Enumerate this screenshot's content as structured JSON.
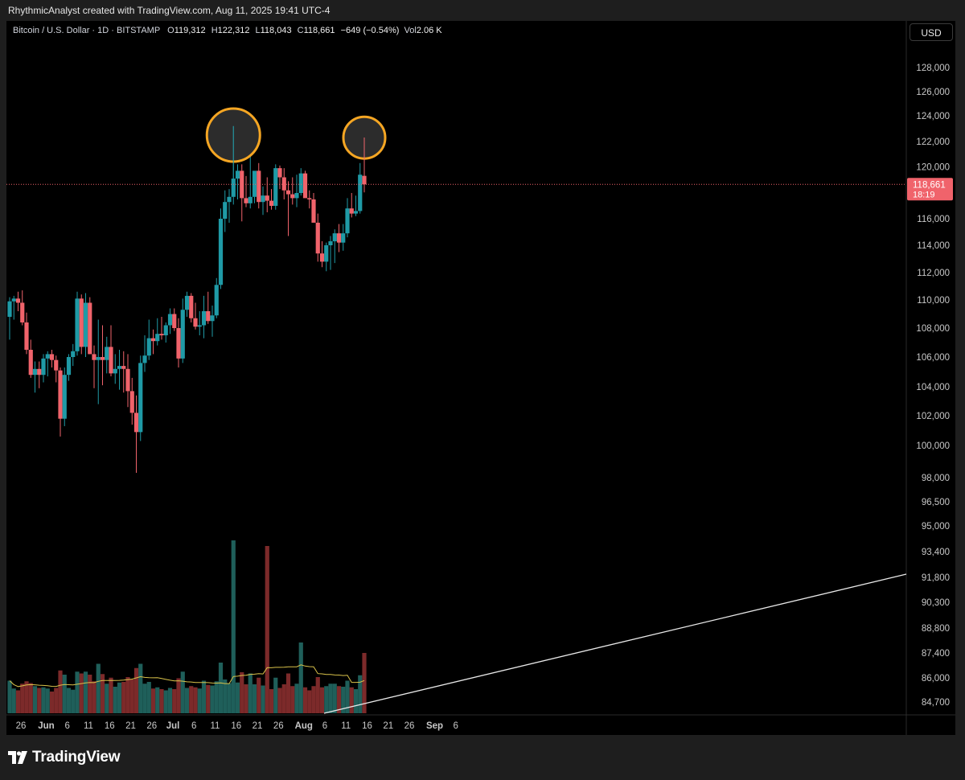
{
  "header": {
    "attribution": "RhythmicAnalyst created with TradingView.com, Aug 11, 2025 19:41 UTC-4"
  },
  "legend": {
    "symbol": "Bitcoin / U.S. Dollar · 1D · BITSTAMP",
    "o_label": "O",
    "o_value": "119,312",
    "h_label": "H",
    "h_value": "122,312",
    "l_label": "L",
    "l_value": "118,043",
    "c_label": "C",
    "c_value": "118,661",
    "change": "−649 (−0.54%)",
    "vol_label": "Vol",
    "vol_value": "2.06 K"
  },
  "currency_button": "USD",
  "last_price": {
    "value": "118,661",
    "countdown": "18:19"
  },
  "footer": {
    "brand": "TradingView"
  },
  "colors": {
    "up": "#1f9aa6",
    "down": "#f0636b",
    "vol_up": "#1f5f5a",
    "vol_down": "#7c2a2a",
    "vol_ma": "#d9c24a",
    "highlight_ring": "#f5a623",
    "trendline": "#e8e8e8",
    "price_line": "#f0636b"
  },
  "chart_data": {
    "type": "candlestick",
    "title": "",
    "y_ticks": [
      "128,000",
      "126,000",
      "124,000",
      "122,000",
      "120,000",
      "118,000",
      "116,000",
      "114,000",
      "112,000",
      "110,000",
      "108,000",
      "106,000",
      "104,000",
      "102,000",
      "100,000",
      "98,000",
      "96,500",
      "95,000",
      "93,400",
      "91,800",
      "90,300",
      "88,800",
      "87,400",
      "86,000",
      "84,700"
    ],
    "y_tick_values": [
      128000,
      126000,
      124000,
      122000,
      120000,
      118000,
      116000,
      114000,
      112000,
      110000,
      108000,
      106000,
      104000,
      102000,
      100000,
      98000,
      96500,
      95000,
      93400,
      91800,
      90300,
      88800,
      87400,
      86000,
      84700
    ],
    "x_ticks": [
      {
        "label": "26",
        "index": 0
      },
      {
        "label": "Jun",
        "index": 6
      },
      {
        "label": "6",
        "index": 11
      },
      {
        "label": "11",
        "index": 16
      },
      {
        "label": "16",
        "index": 21
      },
      {
        "label": "21",
        "index": 26
      },
      {
        "label": "26",
        "index": 31
      },
      {
        "label": "Jul",
        "index": 36
      },
      {
        "label": "6",
        "index": 41
      },
      {
        "label": "11",
        "index": 46
      },
      {
        "label": "16",
        "index": 51
      },
      {
        "label": "21",
        "index": 56
      },
      {
        "label": "26",
        "index": 61
      },
      {
        "label": "Aug",
        "index": 67
      },
      {
        "label": "6",
        "index": 72
      },
      {
        "label": "11",
        "index": 77
      },
      {
        "label": "16",
        "index": 82
      },
      {
        "label": "21",
        "index": 87
      },
      {
        "label": "26",
        "index": 92
      },
      {
        "label": "Sep",
        "index": 98
      },
      {
        "label": "6",
        "index": 103
      }
    ],
    "candles": [
      [
        108800,
        110200,
        107200,
        109900
      ],
      [
        109900,
        110300,
        108600,
        110100
      ],
      [
        110100,
        110600,
        109200,
        109800
      ],
      [
        109800,
        110700,
        108200,
        108400
      ],
      [
        108400,
        109100,
        106200,
        106500
      ],
      [
        106500,
        107200,
        104600,
        104800
      ],
      [
        104800,
        105700,
        103600,
        105200
      ],
      [
        105200,
        105700,
        103900,
        104800
      ],
      [
        104800,
        106200,
        104300,
        105900
      ],
      [
        105900,
        106400,
        104700,
        106200
      ],
      [
        106200,
        106500,
        105300,
        105800
      ],
      [
        105800,
        106100,
        104300,
        105100
      ],
      [
        105100,
        105300,
        100600,
        101800
      ],
      [
        101800,
        105300,
        101300,
        104800
      ],
      [
        104800,
        106200,
        104400,
        106000
      ],
      [
        106000,
        106900,
        105400,
        106400
      ],
      [
        106400,
        110600,
        106100,
        110100
      ],
      [
        110100,
        110400,
        106200,
        106700
      ],
      [
        106700,
        110500,
        106000,
        109800
      ],
      [
        109800,
        110200,
        106200,
        106200
      ],
      [
        106200,
        106800,
        103900,
        105800
      ],
      [
        105800,
        108600,
        102800,
        106000
      ],
      [
        106000,
        108200,
        104100,
        105800
      ],
      [
        105800,
        107400,
        104900,
        106700
      ],
      [
        106700,
        108200,
        104700,
        104900
      ],
      [
        104900,
        106200,
        104200,
        105200
      ],
      [
        105200,
        106500,
        103800,
        105400
      ],
      [
        105400,
        106400,
        103600,
        105200
      ],
      [
        105200,
        106200,
        102600,
        103700
      ],
      [
        103700,
        104600,
        101400,
        102200
      ],
      [
        102200,
        103400,
        98300,
        100900
      ],
      [
        100900,
        106100,
        100300,
        105600
      ],
      [
        105600,
        107500,
        105000,
        106100
      ],
      [
        106100,
        108600,
        105800,
        107300
      ],
      [
        107300,
        107900,
        106200,
        107100
      ],
      [
        107100,
        108700,
        106800,
        107600
      ],
      [
        107600,
        108800,
        107200,
        107500
      ],
      [
        107500,
        108400,
        107000,
        108200
      ],
      [
        108200,
        109400,
        107600,
        109000
      ],
      [
        109000,
        109400,
        107800,
        108000
      ],
      [
        108000,
        108700,
        105300,
        105900
      ],
      [
        105900,
        110100,
        105600,
        109300
      ],
      [
        109300,
        110600,
        108800,
        110300
      ],
      [
        110300,
        110500,
        108400,
        108700
      ],
      [
        108700,
        109800,
        107900,
        108100
      ],
      [
        108100,
        109200,
        107500,
        108200
      ],
      [
        108200,
        110300,
        107300,
        109200
      ],
      [
        109200,
        110600,
        108300,
        108500
      ],
      [
        108500,
        109600,
        107400,
        108900
      ],
      [
        108900,
        111600,
        108700,
        111100
      ],
      [
        111100,
        116800,
        110800,
        116000
      ],
      [
        116000,
        118200,
        115000,
        117300
      ],
      [
        117300,
        118300,
        115700,
        117700
      ],
      [
        117700,
        123200,
        117100,
        119100
      ],
      [
        119100,
        120200,
        117500,
        119700
      ],
      [
        119700,
        120200,
        115800,
        117600
      ],
      [
        117600,
        119300,
        116900,
        117200
      ],
      [
        117200,
        121000,
        116800,
        117700
      ],
      [
        117700,
        119600,
        117200,
        119700
      ],
      [
        119700,
        120300,
        116800,
        117300
      ],
      [
        117300,
        118500,
        116300,
        117800
      ],
      [
        117800,
        119200,
        116500,
        117400
      ],
      [
        117400,
        118300,
        116700,
        117000
      ],
      [
        117000,
        120200,
        116700,
        119900
      ],
      [
        119900,
        120100,
        118300,
        119200
      ],
      [
        119200,
        119900,
        117500,
        118200
      ],
      [
        118200,
        118900,
        114700,
        117900
      ],
      [
        117900,
        119200,
        117100,
        117600
      ],
      [
        117600,
        119400,
        116900,
        118000
      ],
      [
        118000,
        119900,
        117800,
        119500
      ],
      [
        119500,
        119700,
        117800,
        117600
      ],
      [
        117600,
        118200,
        116800,
        117500
      ],
      [
        117500,
        118000,
        115900,
        115700
      ],
      [
        115700,
        116400,
        112800,
        113400
      ],
      [
        113400,
        114300,
        112400,
        112800
      ],
      [
        112800,
        114200,
        112100,
        114000
      ],
      [
        114000,
        114700,
        112200,
        114300
      ],
      [
        114300,
        115200,
        112700,
        114900
      ],
      [
        114900,
        115600,
        113500,
        114200
      ],
      [
        114200,
        115600,
        113600,
        114900
      ],
      [
        114900,
        117600,
        114600,
        116800
      ],
      [
        116800,
        118000,
        116100,
        116400
      ],
      [
        116400,
        117800,
        116200,
        116600
      ],
      [
        116600,
        120300,
        116400,
        119400
      ],
      [
        119312,
        122312,
        118043,
        118661
      ]
    ],
    "volume_label_note": "",
    "ring_indices": [
      53,
      84
    ]
  }
}
